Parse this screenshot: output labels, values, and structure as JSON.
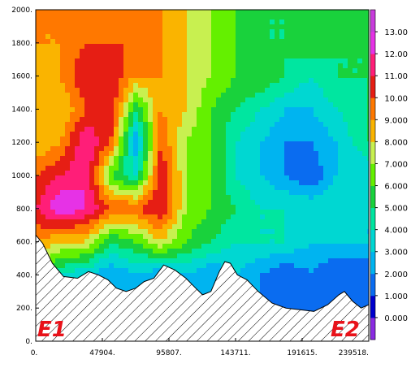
{
  "chart_data": {
    "type": "heatmap",
    "title": "",
    "xlabel": "",
    "ylabel": "",
    "xlim": [
      0,
      239518
    ],
    "ylim": [
      0,
      2000
    ],
    "x_ticks": [
      "0.",
      "47904.",
      "95807.",
      "143711.",
      "191615.",
      "239518."
    ],
    "y_ticks": [
      "0.",
      "200.",
      "400.",
      "600.",
      "800.",
      "1000.",
      "1200.",
      "1400.",
      "1600.",
      "1800.",
      "2000."
    ],
    "colorbar": {
      "levels": [
        "0.000",
        "1.000",
        "2.000",
        "3.000",
        "4.000",
        "5.000",
        "6.000",
        "7.000",
        "8.000",
        "9.000",
        "10.00",
        "11.00",
        "12.00",
        "13.00"
      ],
      "colors": [
        "#8a2be2",
        "#0000cd",
        "#0a6cf0",
        "#00b4f0",
        "#00d7d2",
        "#00e6a0",
        "#19d23c",
        "#64f000",
        "#c8f050",
        "#fab400",
        "#ff7800",
        "#e61e14",
        "#ff1e78",
        "#e632e6",
        "#c83cdc"
      ]
    },
    "endpoints": [
      "E1",
      "E2"
    ],
    "terrain": [
      [
        0,
        640
      ],
      [
        5000,
        590
      ],
      [
        12000,
        470
      ],
      [
        20000,
        390
      ],
      [
        30000,
        380
      ],
      [
        38000,
        420
      ],
      [
        45000,
        400
      ],
      [
        52000,
        370
      ],
      [
        58000,
        320
      ],
      [
        65000,
        300
      ],
      [
        72000,
        320
      ],
      [
        78000,
        360
      ],
      [
        85000,
        380
      ],
      [
        92000,
        460
      ],
      [
        100000,
        430
      ],
      [
        108000,
        380
      ],
      [
        115000,
        320
      ],
      [
        120000,
        280
      ],
      [
        126000,
        300
      ],
      [
        132000,
        420
      ],
      [
        136000,
        480
      ],
      [
        140000,
        470
      ],
      [
        145000,
        400
      ],
      [
        152000,
        370
      ],
      [
        160000,
        300
      ],
      [
        170000,
        230
      ],
      [
        180000,
        200
      ],
      [
        190000,
        190
      ],
      [
        200000,
        180
      ],
      [
        210000,
        220
      ],
      [
        218000,
        280
      ],
      [
        222000,
        300
      ],
      [
        228000,
        240
      ],
      [
        234000,
        200
      ],
      [
        239518,
        220
      ]
    ],
    "field": {
      "x": [
        0,
        18000,
        36000,
        54000,
        72000,
        90000,
        108000,
        126000,
        144000,
        162000,
        180000,
        198000,
        216000,
        239518
      ],
      "y": [
        0,
        200,
        400,
        600,
        800,
        1000,
        1200,
        1400,
        1600,
        1800,
        2000
      ],
      "values": [
        [
          7,
          5,
          4,
          3,
          3,
          3,
          3,
          3,
          2,
          2,
          1,
          1,
          2,
          2
        ],
        [
          7,
          5,
          4,
          3,
          3,
          3,
          3,
          3,
          2,
          2,
          1,
          1,
          2,
          2
        ],
        [
          6,
          4,
          3,
          2,
          3,
          2,
          3,
          2,
          3,
          2,
          1,
          2,
          1,
          1
        ],
        [
          9,
          8,
          8,
          5,
          6,
          8,
          6,
          5,
          4,
          4,
          4,
          3,
          3,
          3
        ],
        [
          11,
          13,
          12,
          10,
          10,
          11,
          7,
          6,
          5,
          4,
          4,
          4,
          4,
          3
        ],
        [
          10,
          11,
          12,
          6,
          4,
          11,
          7,
          6,
          4,
          3,
          2,
          1,
          3,
          3
        ],
        [
          8,
          9,
          12,
          10,
          2,
          10,
          7,
          6,
          4,
          3,
          2,
          2,
          3,
          5
        ],
        [
          8,
          8,
          10,
          11,
          5,
          9,
          8,
          6,
          5,
          4,
          3,
          3,
          4,
          5
        ],
        [
          8,
          9,
          11,
          11,
          9,
          9,
          8,
          7,
          6,
          6,
          5,
          4,
          5,
          5
        ],
        [
          9,
          9,
          10,
          10,
          10,
          9,
          8,
          7,
          6,
          5,
          5,
          6,
          5,
          5
        ],
        [
          9,
          9,
          9,
          10,
          9,
          9,
          8,
          7,
          6,
          5,
          5,
          6,
          5,
          6
        ]
      ]
    }
  }
}
